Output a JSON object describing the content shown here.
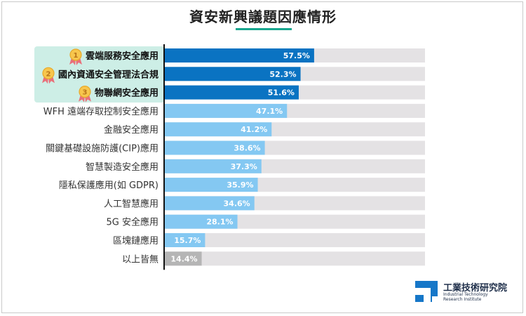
{
  "chart_data": {
    "type": "bar",
    "orientation": "horizontal",
    "title": "資安新興議題因應情形",
    "categories": [
      "雲端服務安全應用",
      "國內資通安全管理法合規",
      "物聯網安全應用",
      "WFH 遠端存取控制安全應用",
      "金融安全應用",
      "關鍵基礎設施防護(CIP)應用",
      "智慧製造安全應用",
      "隱私保護應用(如 GDPR)",
      "人工智慧應用",
      "5G 安全應用",
      "區塊鏈應用",
      "以上皆無"
    ],
    "values": [
      57.5,
      52.3,
      51.6,
      47.1,
      41.2,
      38.6,
      37.3,
      35.9,
      34.6,
      28.1,
      15.7,
      14.4
    ],
    "value_labels": [
      "57.5%",
      "52.3%",
      "51.6%",
      "47.1%",
      "41.2%",
      "38.6%",
      "37.3%",
      "35.9%",
      "34.6%",
      "28.1%",
      "15.7%",
      "14.4%"
    ],
    "ranks": [
      "1",
      "2",
      "3"
    ],
    "xlim": [
      0,
      100
    ],
    "xlabel": "",
    "ylabel": "",
    "grid": false,
    "colors": {
      "top3": "#0a73c2",
      "middle": "#84c8f2",
      "none": "#b5b5b5",
      "track": "#e4e2e4",
      "highlight": "#cdeee6",
      "medal": "#f7c64d",
      "ribbon": "#e9707a"
    }
  },
  "logo": {
    "name": "工業技術研究院",
    "english": "Industrial Technology Research Institute"
  }
}
